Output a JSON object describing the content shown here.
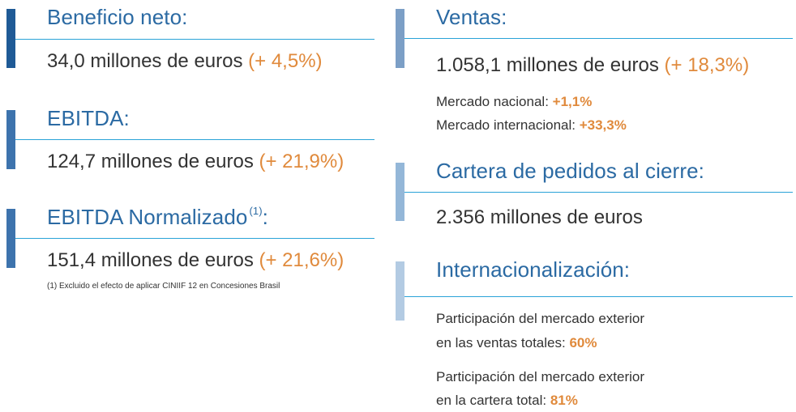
{
  "colors": {
    "heading": "#2b6aa3",
    "accent": "#e08a3c",
    "rule": "#2aa3d8",
    "bar_dark": "#1f5a96",
    "bar_mid": "#3d73ad",
    "bar_light": "#94b7d8",
    "text": "#333333"
  },
  "left": {
    "beneficio": {
      "title": "Beneficio neto:",
      "value": "34,0 millones de euros",
      "change": "(+ 4,5%)"
    },
    "ebitda": {
      "title": "EBITDA:",
      "value": "124,7 millones de euros",
      "change": "(+ 21,9%)"
    },
    "ebitda_normalizado": {
      "title": "EBITDA Normalizado",
      "note_ref": "(1)",
      "colon": ":",
      "value": "151,4 millones de euros",
      "change": "(+ 21,6%)"
    },
    "footnote": "(1) Excluido el efecto de aplicar CINIIF 12 en Concesiones Brasil"
  },
  "right": {
    "ventas": {
      "title": "Ventas:",
      "value": "1.058,1 millones de euros",
      "change": "(+ 18,3%)",
      "nacional_label": "Mercado nacional:",
      "nacional_value": "+1,1%",
      "internacional_label": "Mercado internacional:",
      "internacional_value": "+33,3%"
    },
    "cartera": {
      "title": "Cartera de pedidos al cierre:",
      "value": "2.356 millones de euros"
    },
    "internacionalizacion": {
      "title": "Internacionalización:",
      "ventas_line1": "Participación del mercado exterior",
      "ventas_line2": "en las ventas totales:",
      "ventas_value": "60%",
      "cartera_line1": "Participación del mercado exterior",
      "cartera_line2": "en la cartera total:",
      "cartera_value": "81%"
    }
  }
}
